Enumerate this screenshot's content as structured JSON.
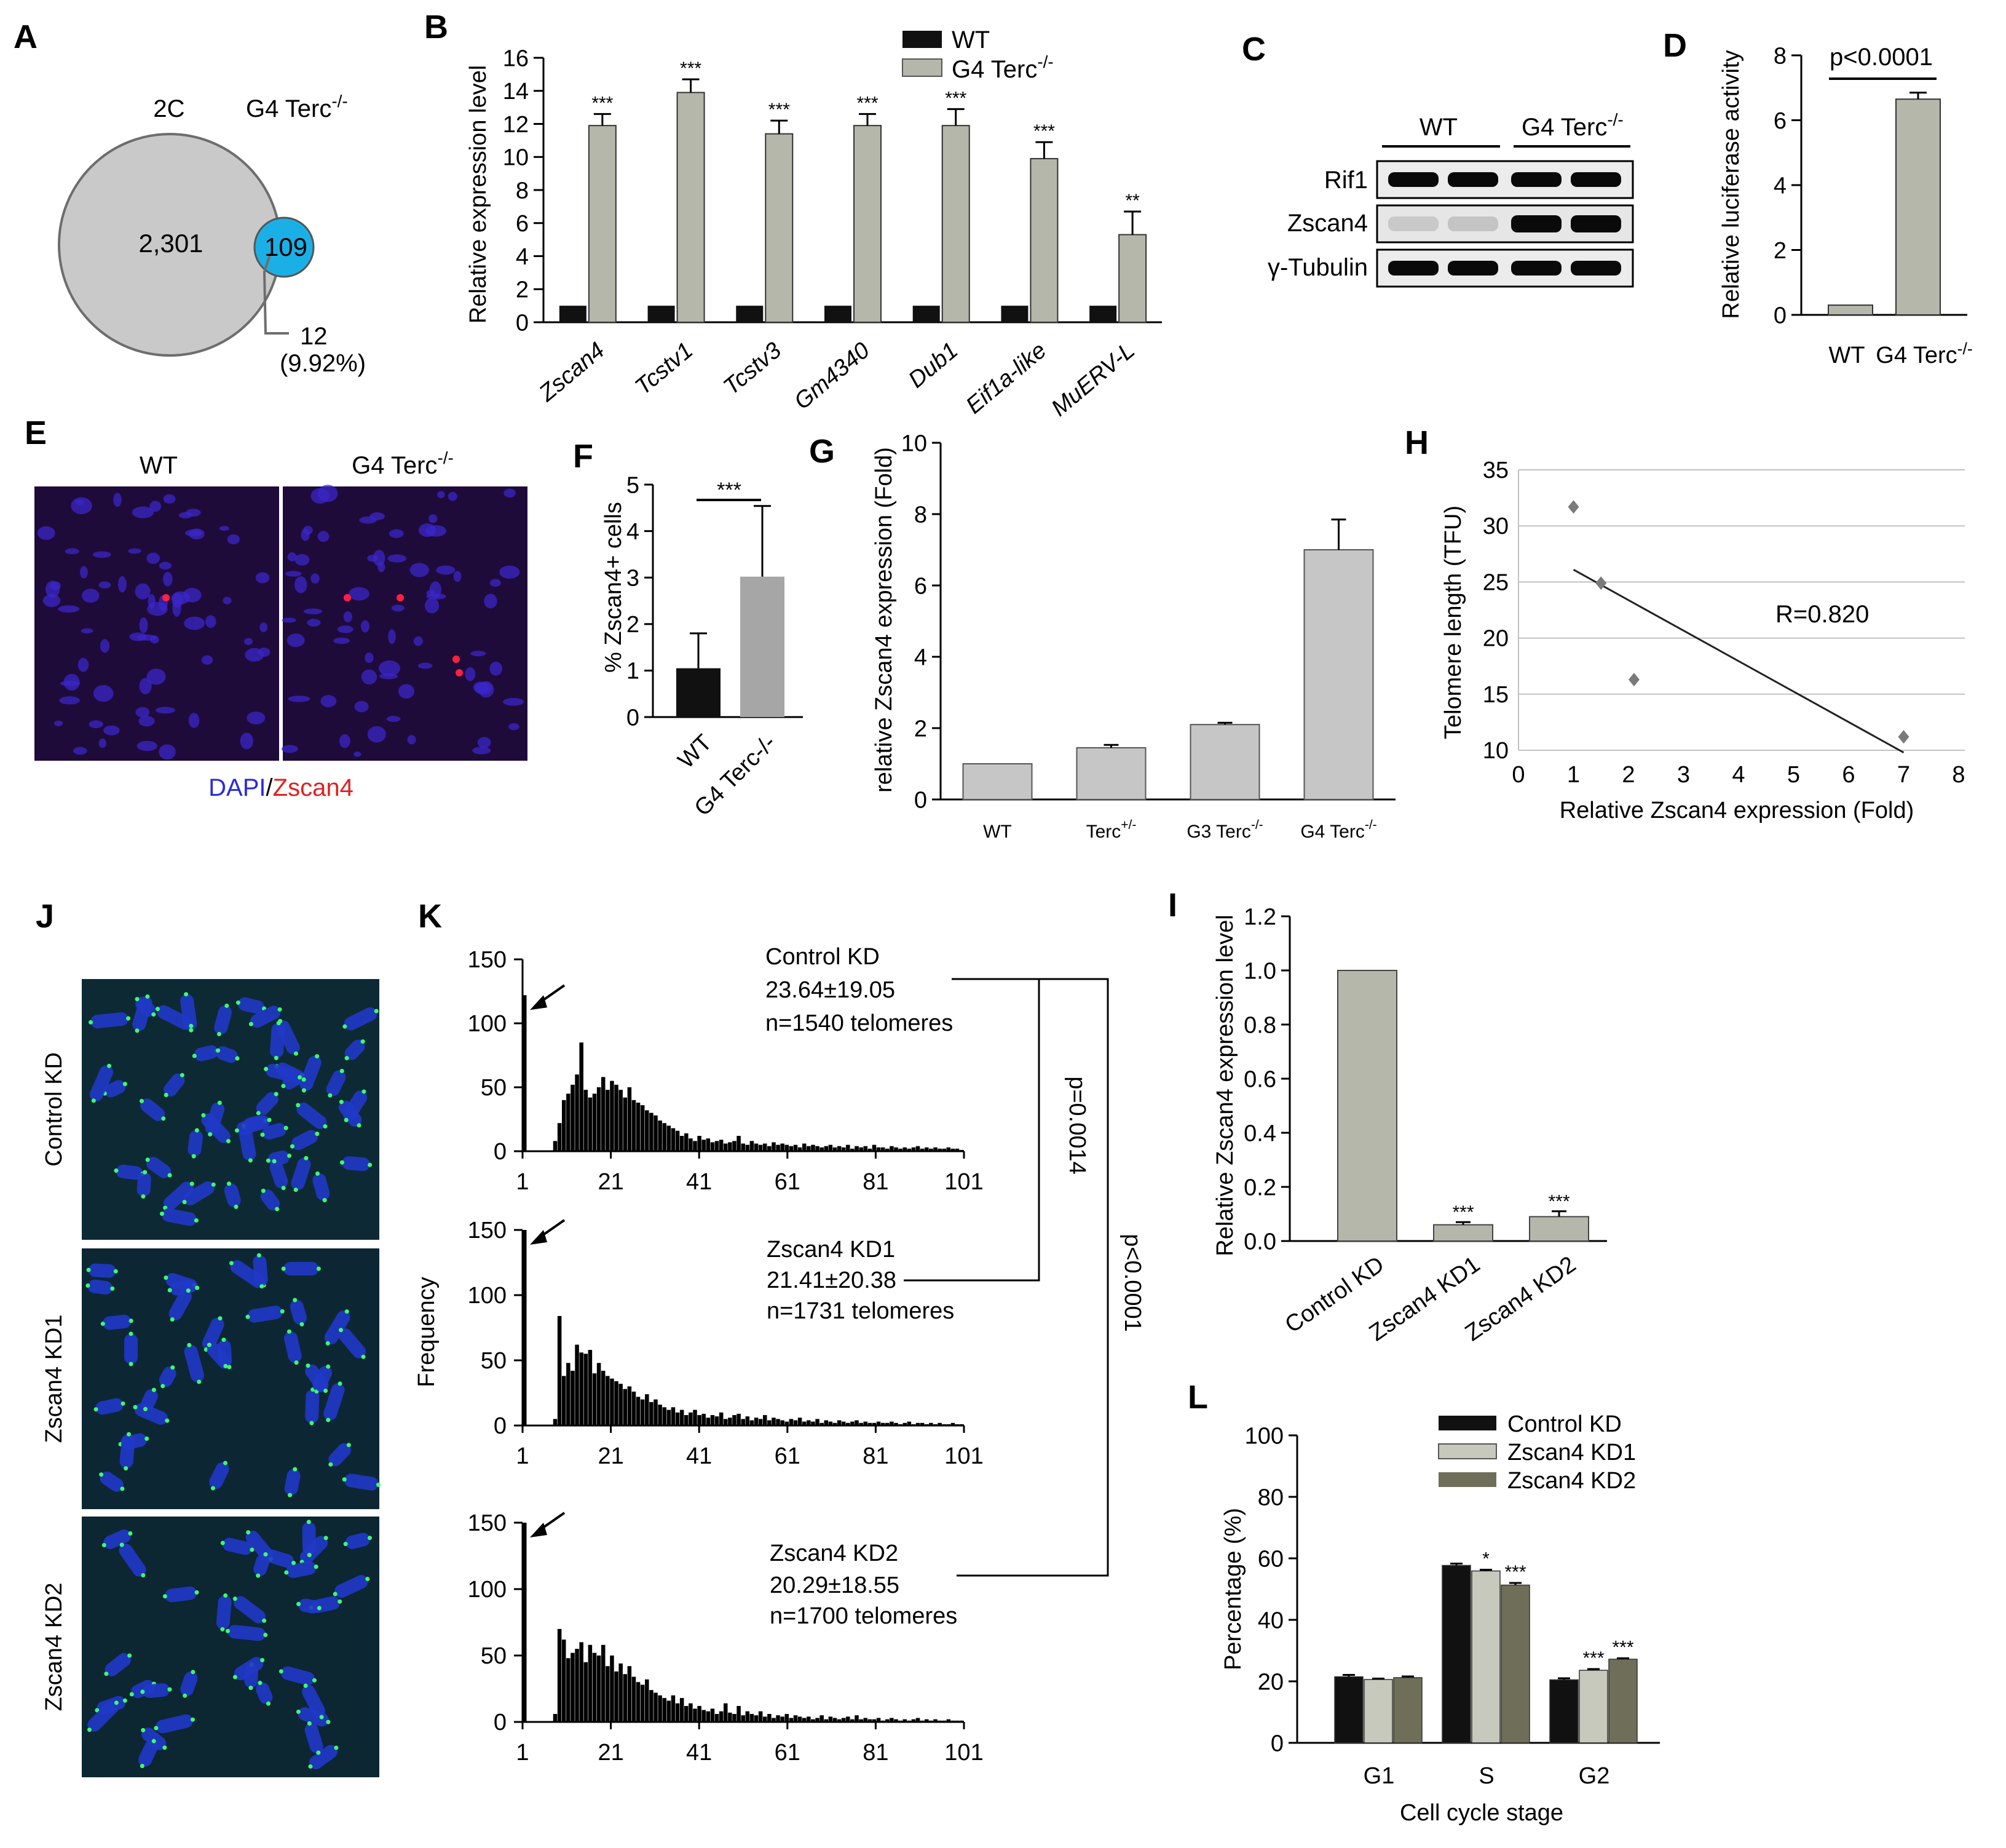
{
  "panel_letters": {
    "A": "A",
    "B": "B",
    "C": "C",
    "D": "D",
    "E": "E",
    "F": "F",
    "G": "G",
    "H": "H",
    "I": "I",
    "J": "J",
    "K": "K",
    "L": "L"
  },
  "colors": {
    "grey_bar": "#b5b7ab",
    "light_bar": "#c6c6c6",
    "dark_olive": "#6f6f59",
    "light_green": "#c7c9bd",
    "black": "#111111",
    "venn_grey": "#c9c9c9",
    "venn_blue": "#1ab0e6",
    "micro_bg": "#1b0a36",
    "metaphase_bg": "#0b2233"
  },
  "panelA": {
    "label_2c": "2C",
    "label_g4": "G4 Terc",
    "label_g4_sup": "-/-",
    "count_2c": "2,301",
    "count_g4": "109",
    "overlap": "12",
    "overlap_pct": "(9.92%)"
  },
  "panelB": {
    "ylabel": "Relative expression level",
    "legend": [
      {
        "label": "WT",
        "sup": ""
      },
      {
        "label": "G4 Terc",
        "sup": "-/-"
      }
    ],
    "sig": [
      "***",
      "***",
      "***",
      "***",
      "***",
      "***",
      "**"
    ]
  },
  "panelC": {
    "header_wt": "WT",
    "header_g4": "G4 Terc",
    "header_g4_sup": "-/-",
    "rows": [
      "Rif1",
      "Zscan4",
      "γ-Tubulin"
    ]
  },
  "panelD": {
    "ylabel": "Relative luciferase activity",
    "pval": "p<0.0001",
    "xlabels": [
      {
        "label": "WT",
        "sup": ""
      },
      {
        "label": "G4 Terc",
        "sup": "-/-"
      }
    ]
  },
  "panelE": {
    "label_wt": "WT",
    "label_g4": "G4 Terc",
    "label_g4_sup": "-/-",
    "stain_dapi": "DAPI",
    "stain_sep": "/",
    "stain_zscan": "Zscan4"
  },
  "panelF": {
    "ylabel": "% Zscan4+ cells",
    "sig": "***"
  },
  "panelG": {
    "ylabel": "relative Zscan4 expression (Fold)",
    "xlabels": [
      {
        "label": "WT",
        "sup": ""
      },
      {
        "label": "Terc",
        "sup": "+/-"
      },
      {
        "label": "G3 Terc",
        "sup": "-/-"
      },
      {
        "label": "G4 Terc",
        "sup": "-/-"
      }
    ]
  },
  "panelH": {
    "ylabel": "Telomere length (TFU)",
    "xlabel": "Relative Zscan4 expression (Fold)",
    "r_label": "R=0.820"
  },
  "panelI": {
    "ylabel": "Relative Zscan4 expression level",
    "sig": [
      "",
      "***",
      "***"
    ]
  },
  "panelJ": {
    "rows": [
      "Control KD",
      "Zscan4 KD1",
      "Zscan4 KD2"
    ]
  },
  "panelK": {
    "ylabel": "Frequency",
    "stats": [
      {
        "name": "Control KD",
        "mean": "23.64±19.05",
        "n": "n=1540 telomeres"
      },
      {
        "name": "Zscan4 KD1",
        "mean": "21.41±20.38",
        "n": "n=1731 telomeres"
      },
      {
        "name": "Zscan4 KD2",
        "mean": "20.29±18.55",
        "n": "n=1700 telomeres"
      }
    ],
    "p1": "p=0.0014",
    "p2": "p<0.0001"
  },
  "panelL": {
    "ylabel": "Percentage (%)",
    "xlabel": "Cell cycle stage",
    "legend": [
      "Control KD",
      "Zscan4 KD1",
      "Zscan4 KD2"
    ],
    "sig": {
      "S_KD1": "*",
      "S_KD2": "***",
      "G2_KD1": "***",
      "G2_KD2": "***"
    }
  },
  "chart_data": [
    {
      "panel": "B",
      "type": "bar",
      "categories": [
        "Zscan4",
        "Tcstv1",
        "Tcstv3",
        "Gm4340",
        "Dub1",
        "Eif1a-like",
        "MuERV-L"
      ],
      "series": [
        {
          "name": "WT",
          "values": [
            1,
            1,
            1,
            1,
            1,
            1,
            1
          ]
        },
        {
          "name": "G4 Terc-/-",
          "values": [
            11.9,
            13.9,
            11.4,
            11.9,
            11.9,
            9.9,
            5.3
          ],
          "errors": [
            0.7,
            0.8,
            0.8,
            0.7,
            1.0,
            1.0,
            1.4
          ]
        }
      ],
      "ylim": [
        0,
        16
      ],
      "yticks": [
        0,
        2,
        4,
        6,
        8,
        10,
        12,
        14,
        16
      ]
    },
    {
      "panel": "D",
      "type": "bar",
      "categories": [
        "WT",
        "G4 Terc-/-"
      ],
      "values": [
        0.3,
        6.65
      ],
      "errors": [
        0,
        0.2
      ],
      "ylim": [
        0,
        8
      ],
      "yticks": [
        0,
        2,
        4,
        6,
        8
      ]
    },
    {
      "panel": "F",
      "type": "bar",
      "categories": [
        "WT",
        "G4 Terc-/-"
      ],
      "values": [
        1.05,
        3.02
      ],
      "errors": [
        0.75,
        1.52
      ],
      "ylim": [
        0,
        5
      ],
      "yticks": [
        0,
        1,
        2,
        3,
        4,
        5
      ]
    },
    {
      "panel": "G",
      "type": "bar",
      "categories": [
        "WT",
        "Terc+/-",
        "G3 Terc-/-",
        "G4 Terc-/-"
      ],
      "values": [
        1,
        1.45,
        2.1,
        7.0
      ],
      "errors": [
        0,
        0.08,
        0.05,
        0.85
      ],
      "ylim": [
        0,
        10
      ],
      "yticks": [
        0,
        2,
        4,
        6,
        8,
        10
      ]
    },
    {
      "panel": "H",
      "type": "scatter",
      "x": [
        1,
        1.5,
        2.1,
        7
      ],
      "y": [
        31.7,
        24.9,
        16.3,
        11.2
      ],
      "fit": {
        "x": [
          1,
          7
        ],
        "y": [
          26.1,
          9.8
        ]
      },
      "xlim": [
        0,
        8
      ],
      "ylim": [
        10,
        35
      ],
      "xticks": [
        0,
        1,
        2,
        3,
        4,
        5,
        6,
        7,
        8
      ],
      "yticks": [
        10,
        15,
        20,
        25,
        30,
        35
      ]
    },
    {
      "panel": "I",
      "type": "bar",
      "categories": [
        "Control KD",
        "Zscan4 KD1",
        "Zscan4 KD2"
      ],
      "values": [
        1.0,
        0.06,
        0.09
      ],
      "errors": [
        0,
        0.01,
        0.02
      ],
      "ylim": [
        0,
        1.2
      ],
      "yticks": [
        "0.0",
        "0.2",
        "0.4",
        "0.6",
        "0.8",
        "1.0",
        "1.2"
      ]
    },
    {
      "panel": "K",
      "type": "bar",
      "xticks": [
        1,
        21,
        41,
        61,
        81,
        101
      ],
      "ylim": [
        0,
        150
      ],
      "yticks": [
        0,
        50,
        100,
        150
      ],
      "series": [
        {
          "name": "Control KD",
          "values": [
            122,
            0,
            0,
            0,
            0,
            0,
            0,
            8,
            22,
            40,
            45,
            52,
            60,
            85,
            48,
            42,
            45,
            50,
            58,
            48,
            55,
            52,
            48,
            42,
            50,
            40,
            38,
            36,
            32,
            30,
            28,
            24,
            22,
            20,
            18,
            16,
            12,
            14,
            10,
            8,
            12,
            9,
            10,
            7,
            8,
            9,
            6,
            7,
            8,
            12,
            6,
            5,
            8,
            6,
            5,
            6,
            4,
            7,
            5,
            6,
            5,
            4,
            5,
            3,
            6,
            4,
            5,
            4,
            3,
            4,
            5,
            3,
            4,
            3,
            5,
            2,
            4,
            3,
            4,
            2,
            5,
            3,
            3,
            2,
            4,
            3,
            2,
            3,
            2,
            3,
            4,
            2,
            3,
            2,
            3,
            2,
            2,
            3,
            2,
            2,
            1
          ]
        },
        {
          "name": "Zscan4 KD1",
          "values": [
            150,
            0,
            0,
            0,
            0,
            0,
            0,
            5,
            84,
            38,
            48,
            42,
            62,
            56,
            55,
            58,
            40,
            48,
            42,
            38,
            36,
            34,
            32,
            28,
            30,
            26,
            22,
            20,
            24,
            18,
            20,
            16,
            14,
            12,
            14,
            10,
            12,
            8,
            10,
            12,
            8,
            9,
            6,
            8,
            7,
            10,
            5,
            6,
            8,
            9,
            5,
            7,
            4,
            6,
            5,
            8,
            4,
            6,
            5,
            4,
            3,
            5,
            4,
            6,
            3,
            4,
            3,
            5,
            2,
            4,
            3,
            2,
            4,
            3,
            2,
            3,
            4,
            2,
            3,
            2,
            2,
            3,
            2,
            2,
            3,
            2,
            1,
            2,
            3,
            1,
            2,
            2,
            1,
            2,
            1,
            2,
            1,
            1,
            2,
            1,
            1
          ]
        },
        {
          "name": "Zscan4 KD2",
          "values": [
            150,
            0,
            0,
            0,
            0,
            0,
            0,
            6,
            70,
            62,
            48,
            52,
            55,
            60,
            45,
            58,
            52,
            50,
            58,
            42,
            50,
            38,
            44,
            36,
            42,
            34,
            30,
            28,
            32,
            24,
            22,
            20,
            18,
            16,
            20,
            14,
            18,
            12,
            14,
            10,
            12,
            9,
            8,
            10,
            6,
            8,
            14,
            7,
            6,
            12,
            5,
            8,
            6,
            5,
            8,
            4,
            6,
            3,
            5,
            4,
            6,
            3,
            5,
            4,
            3,
            4,
            2,
            3,
            5,
            2,
            4,
            3,
            2,
            3,
            4,
            2,
            5,
            2,
            3,
            2,
            2,
            3,
            1,
            2,
            3,
            2,
            1,
            2,
            1,
            2,
            3,
            1,
            2,
            1,
            2,
            1,
            1,
            2,
            1,
            1,
            1
          ]
        }
      ]
    },
    {
      "panel": "L",
      "type": "bar",
      "categories": [
        "G1",
        "S",
        "G2"
      ],
      "series": [
        {
          "name": "Control KD",
          "values": [
            21.5,
            57.7,
            20.5
          ],
          "errors": [
            0.6,
            0.6,
            0.5
          ]
        },
        {
          "name": "Zscan4 KD1",
          "values": [
            20.6,
            55.9,
            23.6
          ],
          "errors": [
            0.3,
            0.4,
            0.4
          ]
        },
        {
          "name": "Zscan4 KD2",
          "values": [
            21.2,
            51.3,
            27.2
          ],
          "errors": [
            0.4,
            0.7,
            0.3
          ]
        }
      ],
      "ylim": [
        0,
        100
      ],
      "yticks": [
        0,
        20,
        40,
        60,
        80,
        100
      ]
    }
  ]
}
